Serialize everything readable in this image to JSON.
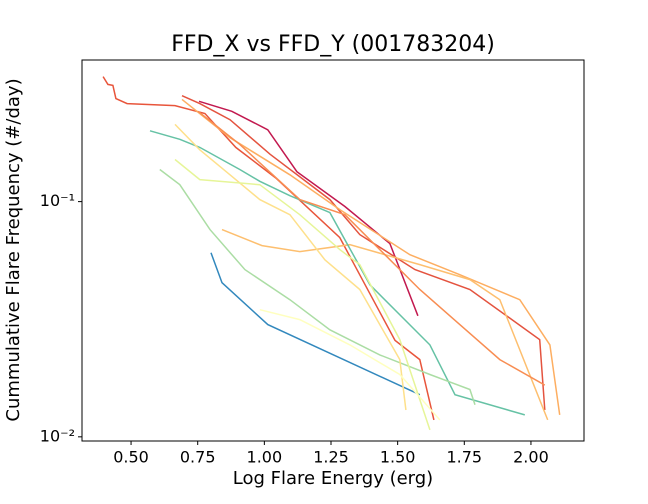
{
  "chart_data": {
    "type": "line",
    "title": "FFD_X vs FFD_Y (001783204)",
    "xlabel": "Log Flare Energy (erg)",
    "ylabel": "Cummulative Flare Frequency (#/day)",
    "yscale": "log",
    "xlim": [
      0.316,
      2.199
    ],
    "ylim": [
      0.0096,
      0.4
    ],
    "xticks": [
      {
        "value": 0.5,
        "label": "0.50"
      },
      {
        "value": 0.75,
        "label": "0.75"
      },
      {
        "value": 1.0,
        "label": "1.00"
      },
      {
        "value": 1.25,
        "label": "1.25"
      },
      {
        "value": 1.5,
        "label": "1.50"
      },
      {
        "value": 1.75,
        "label": "1.75"
      },
      {
        "value": 2.0,
        "label": "2.00"
      }
    ],
    "yticks": [
      {
        "value": 0.01,
        "label": "10⁻²"
      },
      {
        "value": 0.1,
        "label": "10⁻¹"
      }
    ],
    "series": [
      {
        "color": "#c2194f",
        "x": [
          0.755,
          0.878,
          1.013,
          1.122,
          1.302,
          1.471,
          1.576
        ],
        "values": [
          0.267,
          0.242,
          0.202,
          0.134,
          0.0953,
          0.0663,
          0.0327
        ]
      },
      {
        "color": "#e8553b",
        "x": [
          0.395,
          0.413,
          0.432,
          0.443,
          0.485,
          0.665,
          0.777,
          0.893,
          1.043,
          1.283,
          1.396,
          1.49,
          1.583,
          1.636
        ],
        "values": [
          0.34,
          0.315,
          0.312,
          0.274,
          0.261,
          0.256,
          0.237,
          0.17,
          0.126,
          0.0703,
          0.0406,
          0.0257,
          0.0213,
          0.0118
        ]
      },
      {
        "color": "#e4533f",
        "x": [
          0.691,
          0.758,
          0.871,
          1.021,
          1.246,
          1.358,
          1.565,
          1.771,
          2.033,
          2.052
        ],
        "values": [
          0.282,
          0.261,
          0.223,
          0.159,
          0.102,
          0.0724,
          0.0514,
          0.0423,
          0.0259,
          0.013
        ]
      },
      {
        "color": "#fdae61",
        "x": [
          0.691,
          0.871,
          1.096,
          1.283,
          1.546,
          1.733,
          1.958,
          2.071,
          2.108
        ],
        "values": [
          0.272,
          0.187,
          0.13,
          0.0925,
          0.0595,
          0.0489,
          0.0383,
          0.0246,
          0.0124
        ]
      },
      {
        "color": "#fdbf6f",
        "x": [
          0.841,
          0.991,
          1.133,
          1.321,
          1.583,
          1.771,
          1.883,
          2.063
        ],
        "values": [
          0.076,
          0.065,
          0.0613,
          0.0656,
          0.054,
          0.0466,
          0.0383,
          0.0118
        ]
      },
      {
        "color": "#3288bd",
        "x": [
          0.8,
          0.841,
          1.013,
          1.583
        ],
        "values": [
          0.0606,
          0.0452,
          0.03,
          0.0151
        ]
      },
      {
        "color": "#66c2a5",
        "x": [
          0.571,
          0.683,
          0.758,
          0.908,
          0.983,
          1.096,
          1.246,
          1.302,
          1.396,
          1.621,
          1.715,
          1.977
        ],
        "values": [
          0.2,
          0.184,
          0.17,
          0.137,
          0.122,
          0.106,
          0.0898,
          0.0689,
          0.0443,
          0.0246,
          0.0151,
          0.0124
        ]
      },
      {
        "color": "#abdda4",
        "x": [
          0.608,
          0.683,
          0.796,
          0.927,
          1.096,
          1.246,
          1.433,
          1.621,
          1.771,
          1.79
        ],
        "values": [
          0.137,
          0.118,
          0.076,
          0.0514,
          0.0383,
          0.0285,
          0.0223,
          0.0184,
          0.0159,
          0.0137
        ]
      },
      {
        "color": "#fee08b",
        "x": [
          0.665,
          0.758,
          0.871,
          0.983,
          1.096,
          1.227,
          1.358,
          1.433,
          1.508,
          1.531
        ],
        "values": [
          0.213,
          0.166,
          0.13,
          0.102,
          0.088,
          0.0566,
          0.0423,
          0.03,
          0.0213,
          0.013
        ]
      },
      {
        "color": "#e6f598",
        "x": [
          0.665,
          0.758,
          0.983,
          1.133,
          1.283,
          1.358,
          1.508,
          1.621
        ],
        "values": [
          0.151,
          0.124,
          0.118,
          0.088,
          0.0625,
          0.054,
          0.0259,
          0.0107
        ]
      },
      {
        "color": "#ffffbf",
        "x": [
          0.983,
          1.133,
          1.321,
          1.508,
          1.658
        ],
        "values": [
          0.0347,
          0.0315,
          0.0246,
          0.0184,
          0.0118
        ]
      },
      {
        "color": "#f88d52",
        "x": [
          0.751,
          0.908,
          1.133,
          1.302,
          1.452,
          1.583,
          1.733,
          1.883,
          2.052
        ],
        "values": [
          0.242,
          0.175,
          0.102,
          0.088,
          0.0595,
          0.0423,
          0.03,
          0.0213,
          0.0166
        ]
      }
    ]
  }
}
